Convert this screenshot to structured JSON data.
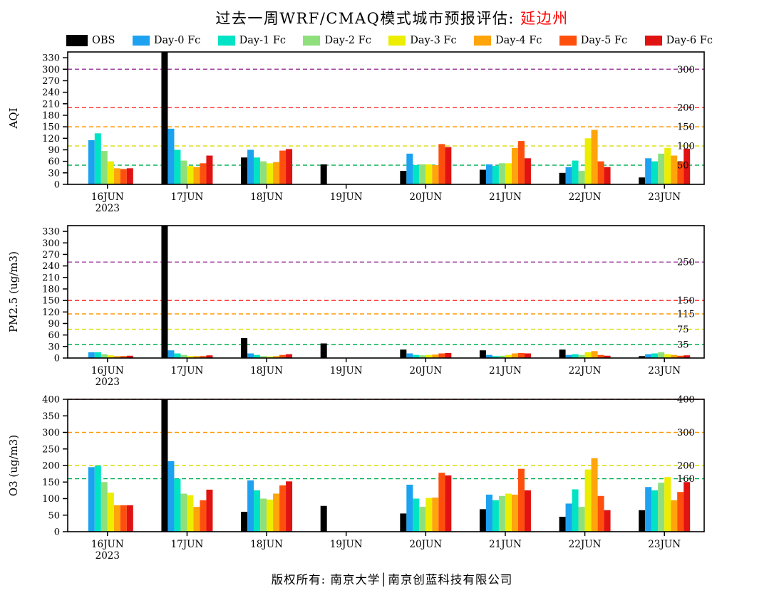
{
  "title": {
    "main": "过去一周WRF/CMAQ模式城市预报评估: ",
    "region": "延边州"
  },
  "legend": {
    "items": [
      {
        "label": "OBS",
        "color": "#000000"
      },
      {
        "label": "Day-0 Fc",
        "color": "#1CA2F1"
      },
      {
        "label": "Day-1 Fc",
        "color": "#00E3C4"
      },
      {
        "label": "Day-2 Fc",
        "color": "#8FE07C"
      },
      {
        "label": "Day-3 Fc",
        "color": "#EDED00"
      },
      {
        "label": "Day-4 Fc",
        "color": "#FFA40B"
      },
      {
        "label": "Day-5 Fc",
        "color": "#FF4F0D"
      },
      {
        "label": "Day-6 Fc",
        "color": "#E01212"
      }
    ]
  },
  "footer": {
    "text": "版权所有: 南京大学│南京创蓝科技有限公司"
  },
  "chart_data": [
    {
      "type": "bar",
      "name": "aqi",
      "title": "",
      "ylabel": "AQI",
      "xlabel": "",
      "ylim": [
        0,
        345
      ],
      "ytick_step": 30,
      "grid": false,
      "legend_position": "top",
      "categories": [
        "16JUN",
        "17JUN",
        "18JUN",
        "19JUN",
        "20JUN",
        "21JUN",
        "22JUN",
        "23JUN"
      ],
      "x_sub_label": "2023",
      "thresholds": [
        {
          "value": 50,
          "label": "50",
          "color": "#00B050"
        },
        {
          "value": 100,
          "label": "100",
          "color": "#DCDC00"
        },
        {
          "value": 150,
          "label": "150",
          "color": "#FF9900"
        },
        {
          "value": 200,
          "label": "200",
          "color": "#FF2A2A"
        },
        {
          "value": 300,
          "label": "300",
          "color": "#A040A0"
        }
      ],
      "series": [
        {
          "name": "OBS",
          "values": [
            0,
            345,
            70,
            52,
            35,
            38,
            30,
            18
          ]
        },
        {
          "name": "Day-0 Fc",
          "values": [
            115,
            145,
            90,
            0,
            80,
            52,
            45,
            68
          ]
        },
        {
          "name": "Day-1 Fc",
          "values": [
            133,
            90,
            70,
            0,
            50,
            48,
            62,
            60
          ]
        },
        {
          "name": "Day-2 Fc",
          "values": [
            87,
            62,
            60,
            0,
            52,
            55,
            35,
            80
          ]
        },
        {
          "name": "Day-3 Fc",
          "values": [
            60,
            48,
            55,
            0,
            52,
            55,
            120,
            95
          ]
        },
        {
          "name": "Day-4 Fc",
          "values": [
            42,
            45,
            58,
            0,
            50,
            95,
            142,
            75
          ]
        },
        {
          "name": "Day-5 Fc",
          "values": [
            40,
            55,
            88,
            0,
            105,
            113,
            60,
            60
          ]
        },
        {
          "name": "Day-6 Fc",
          "values": [
            42,
            75,
            92,
            0,
            97,
            68,
            45,
            93
          ]
        }
      ]
    },
    {
      "type": "bar",
      "name": "pm25",
      "title": "",
      "ylabel": "PM2.5 (ug/m3)",
      "xlabel": "",
      "ylim": [
        0,
        345
      ],
      "ytick_step": 30,
      "grid": false,
      "legend_position": "top",
      "categories": [
        "16JUN",
        "17JUN",
        "18JUN",
        "19JUN",
        "20JUN",
        "21JUN",
        "22JUN",
        "23JUN"
      ],
      "x_sub_label": "2023",
      "thresholds": [
        {
          "value": 35,
          "label": "35",
          "color": "#00B050"
        },
        {
          "value": 75,
          "label": "75",
          "color": "#DCDC00"
        },
        {
          "value": 115,
          "label": "115",
          "color": "#FF9900"
        },
        {
          "value": 150,
          "label": "150",
          "color": "#FF2A2A"
        },
        {
          "value": 250,
          "label": "250",
          "color": "#A040A0"
        }
      ],
      "series": [
        {
          "name": "OBS",
          "values": [
            0,
            345,
            52,
            38,
            22,
            20,
            22,
            5
          ]
        },
        {
          "name": "Day-0 Fc",
          "values": [
            15,
            20,
            12,
            0,
            12,
            8,
            8,
            10
          ]
        },
        {
          "name": "Day-1 Fc",
          "values": [
            15,
            12,
            8,
            0,
            8,
            5,
            10,
            12
          ]
        },
        {
          "name": "Day-2 Fc",
          "values": [
            10,
            8,
            5,
            0,
            7,
            6,
            8,
            15
          ]
        },
        {
          "name": "Day-3 Fc",
          "values": [
            7,
            5,
            4,
            0,
            8,
            8,
            15,
            10
          ]
        },
        {
          "name": "Day-4 Fc",
          "values": [
            5,
            5,
            5,
            0,
            9,
            12,
            18,
            8
          ]
        },
        {
          "name": "Day-5 Fc",
          "values": [
            5,
            5,
            8,
            0,
            12,
            13,
            8,
            6
          ]
        },
        {
          "name": "Day-6 Fc",
          "values": [
            6,
            7,
            10,
            0,
            13,
            12,
            6,
            7
          ]
        }
      ]
    },
    {
      "type": "bar",
      "name": "o3",
      "title": "",
      "ylabel": "O3 (ug/m3)",
      "xlabel": "",
      "ylim": [
        0,
        400
      ],
      "ytick_step": 50,
      "grid": false,
      "legend_position": "top",
      "categories": [
        "16JUN",
        "17JUN",
        "18JUN",
        "19JUN",
        "20JUN",
        "21JUN",
        "22JUN",
        "23JUN"
      ],
      "x_sub_label": "2023",
      "thresholds": [
        {
          "value": 160,
          "label": "160",
          "color": "#00B050"
        },
        {
          "value": 200,
          "label": "200",
          "color": "#DCDC00"
        },
        {
          "value": 300,
          "label": "300",
          "color": "#FF9900"
        },
        {
          "value": 400,
          "label": "400",
          "color": "#FF2A2A"
        }
      ],
      "series": [
        {
          "name": "OBS",
          "values": [
            0,
            400,
            60,
            78,
            55,
            68,
            45,
            65
          ]
        },
        {
          "name": "Day-0 Fc",
          "values": [
            195,
            213,
            155,
            0,
            142,
            112,
            85,
            135
          ]
        },
        {
          "name": "Day-1 Fc",
          "values": [
            200,
            160,
            125,
            0,
            100,
            95,
            128,
            125
          ]
        },
        {
          "name": "Day-2 Fc",
          "values": [
            150,
            115,
            100,
            0,
            75,
            108,
            75,
            148
          ]
        },
        {
          "name": "Day-3 Fc",
          "values": [
            118,
            110,
            97,
            0,
            102,
            115,
            188,
            165
          ]
        },
        {
          "name": "Day-4 Fc",
          "values": [
            80,
            75,
            115,
            0,
            103,
            112,
            222,
            95
          ]
        },
        {
          "name": "Day-5 Fc",
          "values": [
            80,
            95,
            140,
            0,
            178,
            190,
            108,
            120
          ]
        },
        {
          "name": "Day-6 Fc",
          "values": [
            80,
            127,
            152,
            0,
            170,
            125,
            65,
            150
          ]
        }
      ]
    }
  ]
}
